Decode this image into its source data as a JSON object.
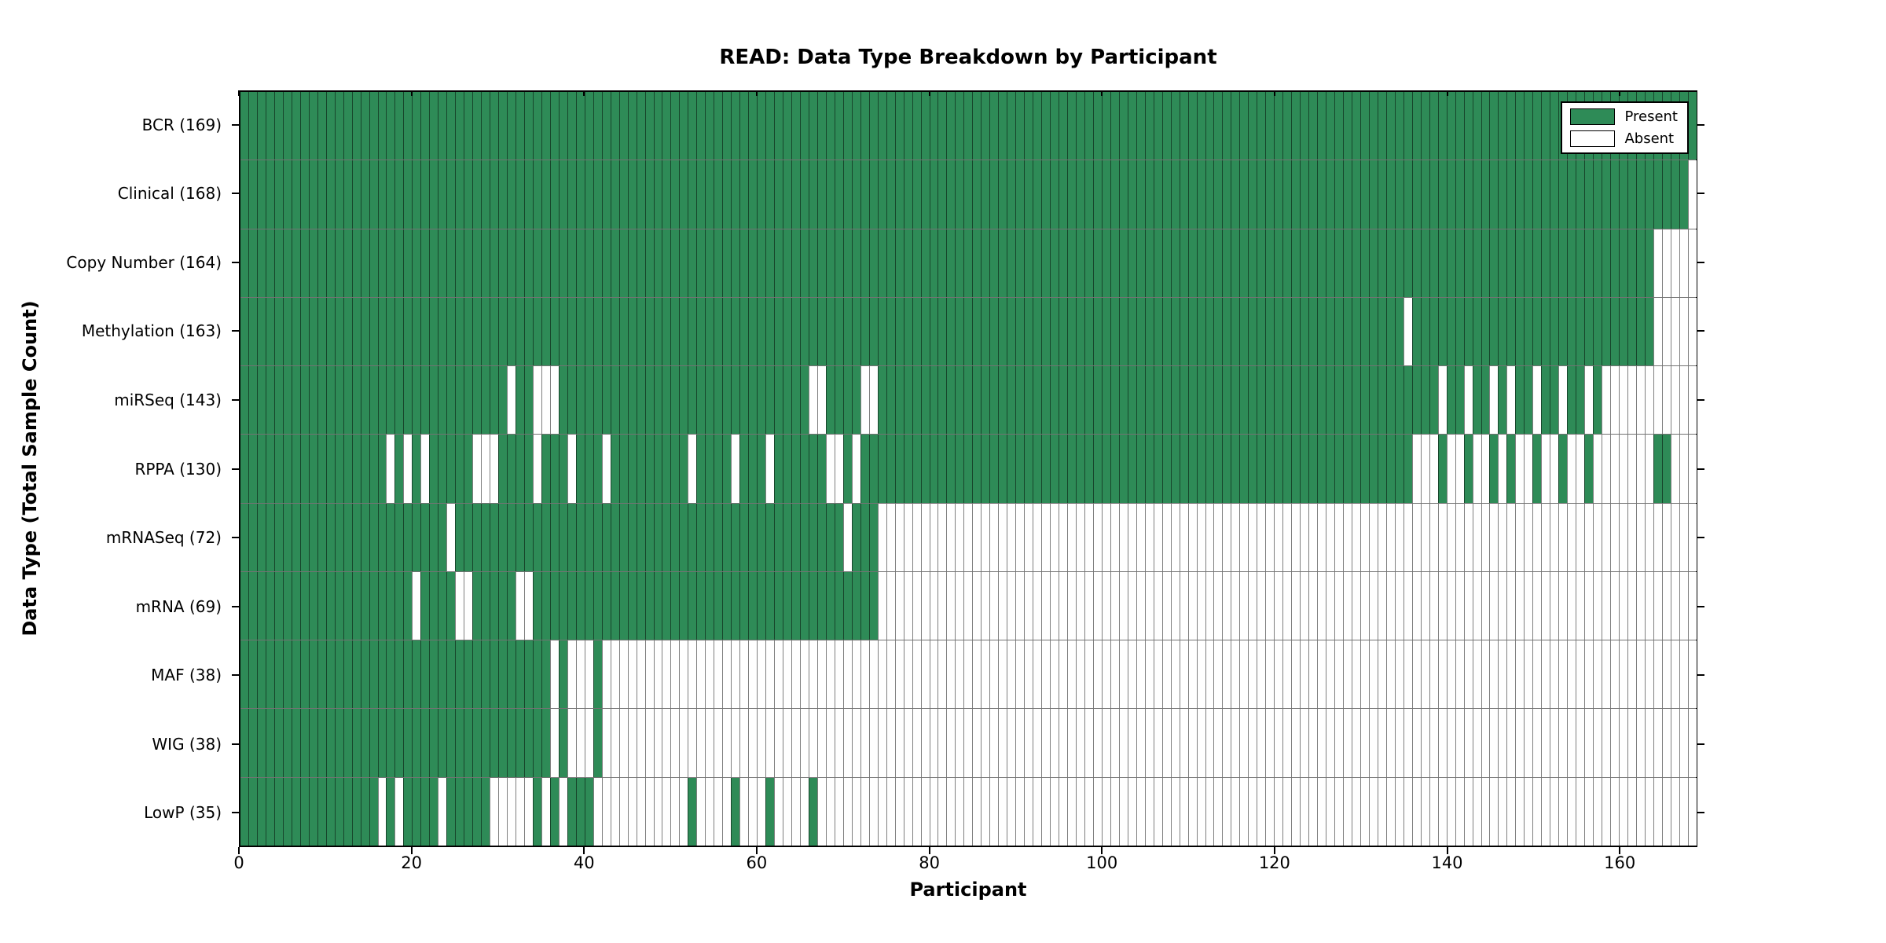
{
  "title": "READ: Data Type Breakdown by Participant",
  "x_axis_label": "Participant",
  "y_axis_label": "Data Type (Total Sample Count)",
  "legend": {
    "present_label": "Present",
    "absent_label": "Absent"
  },
  "colors": {
    "present": "#2e8b57",
    "absent": "#ffffff",
    "grid_line": "rgba(0,0,0,0.5)",
    "axis": "#000000"
  },
  "chart_data": {
    "type": "heatmap",
    "title": "READ: Data Type Breakdown by Participant",
    "xlabel": "Participant",
    "ylabel": "Data Type (Total Sample Count)",
    "x_min": 0,
    "x_max": 169,
    "n_participants": 169,
    "x_ticks": [
      0,
      20,
      40,
      60,
      80,
      100,
      120,
      140,
      160
    ],
    "grid": true,
    "legend_position": "upper right",
    "legend_entries": [
      {
        "label": "Present",
        "color": "#2e8b57"
      },
      {
        "label": "Absent",
        "color": "#ffffff"
      }
    ],
    "rows": [
      {
        "label": "BCR (169)",
        "data_type": "BCR",
        "present_count": 169,
        "absent_ranges": []
      },
      {
        "label": "Clinical (168)",
        "data_type": "Clinical",
        "present_count": 168,
        "absent_ranges": [
          [
            168,
            168
          ]
        ]
      },
      {
        "label": "Copy Number (164)",
        "data_type": "Copy Number",
        "present_count": 164,
        "absent_ranges": [
          [
            164,
            168
          ]
        ]
      },
      {
        "label": "Methylation (163)",
        "data_type": "Methylation",
        "present_count": 163,
        "absent_ranges": [
          [
            135,
            135
          ],
          [
            164,
            168
          ]
        ]
      },
      {
        "label": "miRSeq (143)",
        "data_type": "miRSeq",
        "present_count": 143,
        "absent_ranges": [
          [
            31,
            31
          ],
          [
            34,
            36
          ],
          [
            66,
            67
          ],
          [
            72,
            73
          ],
          [
            139,
            139
          ],
          [
            142,
            142
          ],
          [
            145,
            145
          ],
          [
            147,
            147
          ],
          [
            150,
            150
          ],
          [
            153,
            153
          ],
          [
            156,
            156
          ],
          [
            158,
            168
          ]
        ]
      },
      {
        "label": "RPPA (130)",
        "data_type": "RPPA",
        "present_count": 130,
        "absent_ranges": [
          [
            17,
            17
          ],
          [
            19,
            19
          ],
          [
            21,
            21
          ],
          [
            27,
            29
          ],
          [
            34,
            34
          ],
          [
            38,
            38
          ],
          [
            42,
            42
          ],
          [
            52,
            52
          ],
          [
            57,
            57
          ],
          [
            61,
            61
          ],
          [
            68,
            69
          ],
          [
            71,
            71
          ],
          [
            136,
            138
          ],
          [
            140,
            141
          ],
          [
            143,
            144
          ],
          [
            146,
            146
          ],
          [
            148,
            149
          ],
          [
            151,
            152
          ],
          [
            154,
            155
          ],
          [
            157,
            163
          ],
          [
            166,
            168
          ]
        ]
      },
      {
        "label": "mRNASeq (72)",
        "data_type": "mRNASeq",
        "present_count": 72,
        "absent_ranges": [
          [
            24,
            24
          ],
          [
            70,
            70
          ],
          [
            74,
            168
          ]
        ]
      },
      {
        "label": "mRNA (69)",
        "data_type": "mRNA",
        "present_count": 69,
        "absent_ranges": [
          [
            20,
            20
          ],
          [
            25,
            26
          ],
          [
            32,
            33
          ],
          [
            74,
            168
          ]
        ]
      },
      {
        "label": "MAF (38)",
        "data_type": "MAF",
        "present_count": 38,
        "absent_ranges": [
          [
            36,
            36
          ],
          [
            38,
            40
          ],
          [
            42,
            168
          ]
        ]
      },
      {
        "label": "WIG (38)",
        "data_type": "WIG",
        "present_count": 38,
        "absent_ranges": [
          [
            36,
            36
          ],
          [
            38,
            40
          ],
          [
            42,
            168
          ]
        ]
      },
      {
        "label": "LowP (35)",
        "data_type": "LowP",
        "present_count": 35,
        "absent_ranges": [
          [
            16,
            16
          ],
          [
            18,
            18
          ],
          [
            23,
            23
          ],
          [
            29,
            33
          ],
          [
            35,
            35
          ],
          [
            37,
            37
          ],
          [
            41,
            51
          ],
          [
            53,
            56
          ],
          [
            58,
            60
          ],
          [
            62,
            65
          ],
          [
            67,
            168
          ]
        ]
      }
    ]
  }
}
